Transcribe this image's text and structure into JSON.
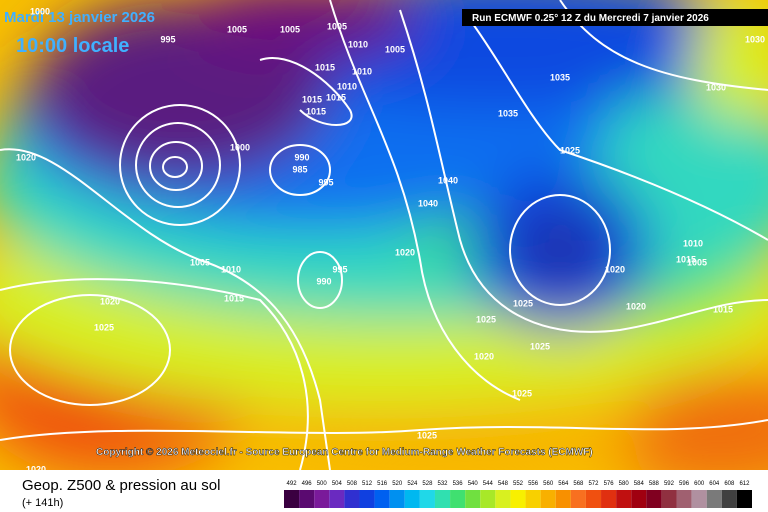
{
  "header": {
    "date": "Mardi 13 janvier 2026",
    "time": "10:00 locale",
    "run": "Run ECMWF 0.25° 12 Z du Mercredi 7 janvier 2026"
  },
  "copyright": "Copyright © 2026 Meteociel.fr - Source European Centre for Medium-Range Weather Forecasts (ECMWF)",
  "footer": {
    "title": "Geop. Z500 & pression au sol",
    "lead": "(+ 141h)"
  },
  "isobar_labels": [
    1000,
    995,
    1005,
    1005,
    1005,
    1010,
    1005,
    1015,
    1010,
    1010,
    1015,
    1015,
    1015,
    1000,
    990,
    985,
    995,
    1020,
    1005,
    1010,
    1015,
    1020,
    1025,
    995,
    990,
    1020,
    1040,
    1040,
    1035,
    1035,
    1025,
    1020,
    1025,
    1025,
    1025,
    1020,
    1020,
    1025,
    1025,
    1030,
    1030,
    1010,
    1015,
    1005,
    1015,
    1020
  ],
  "colorbar": {
    "values": [
      492,
      496,
      500,
      504,
      508,
      512,
      516,
      520,
      524,
      528,
      532,
      536,
      540,
      544,
      548,
      552,
      556,
      560,
      564,
      568,
      572,
      576,
      580,
      584,
      588,
      592,
      596,
      600,
      604,
      608,
      612
    ],
    "colors": [
      "#3a0040",
      "#5a0a70",
      "#7a1a9a",
      "#6a2ac0",
      "#3030d0",
      "#1040e0",
      "#0060f0",
      "#0090f0",
      "#00b8f0",
      "#20d8e8",
      "#30e0b0",
      "#40e070",
      "#70e040",
      "#a8e828",
      "#d8f020",
      "#f8f000",
      "#f8d000",
      "#f8b000",
      "#f89000",
      "#f87020",
      "#f05010",
      "#e03010",
      "#c01010",
      "#a00010",
      "#800020",
      "#903040",
      "#a06070",
      "#b090a0",
      "#7a7a7a",
      "#404040",
      "#000000"
    ]
  }
}
